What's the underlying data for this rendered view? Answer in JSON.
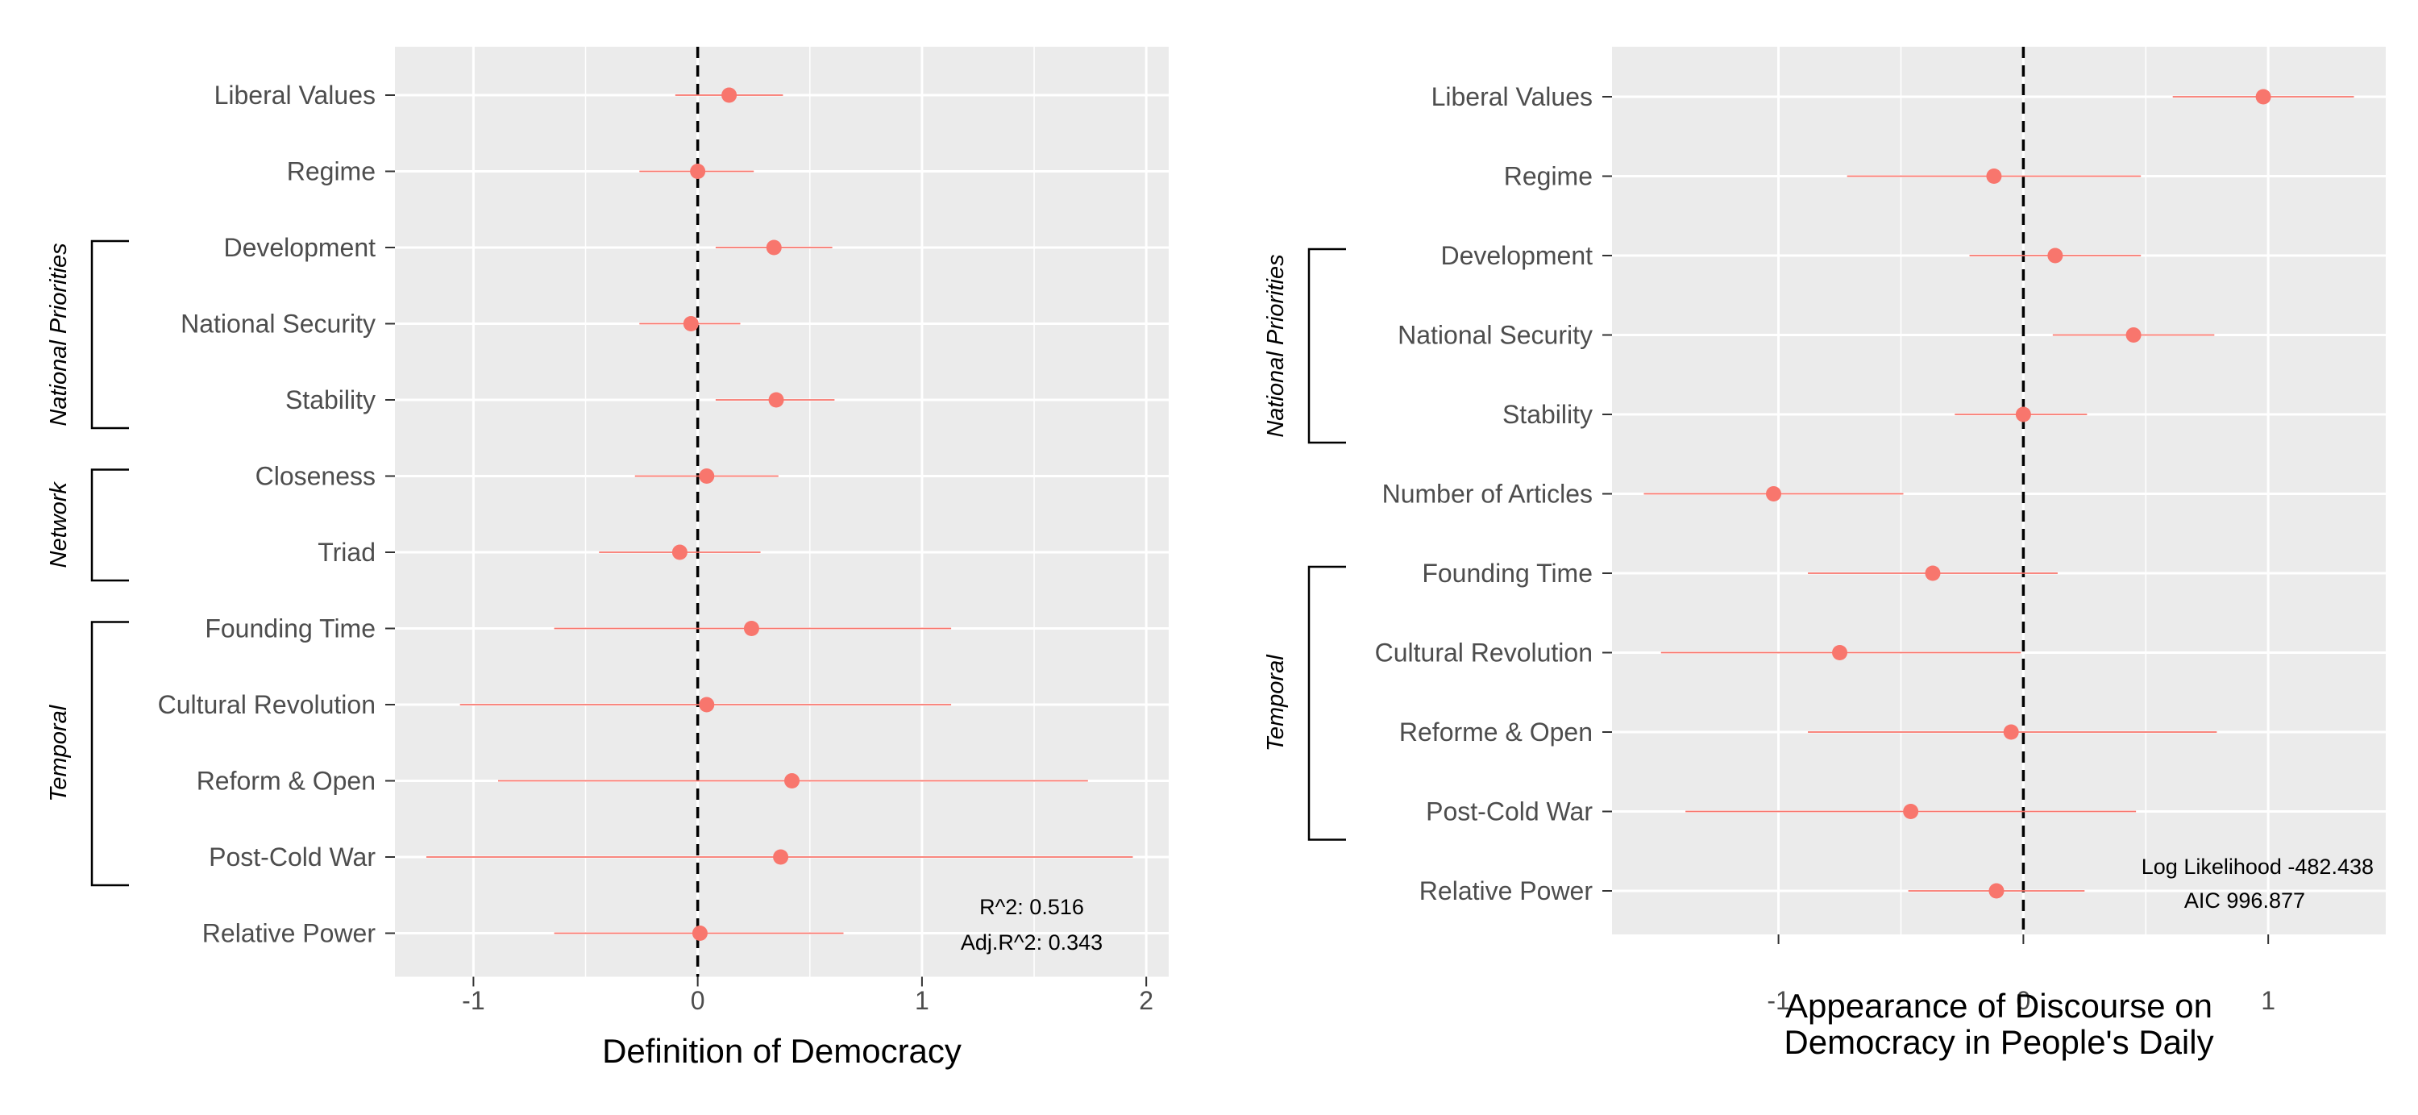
{
  "chart_data": [
    {
      "type": "scatter",
      "subtype": "coefficient-plot",
      "xlabel": "Definition of Democracy",
      "xlim": [
        -1.35,
        2.1
      ],
      "xticks": [
        -1,
        0,
        1,
        2
      ],
      "xtick_labels": [
        "-1",
        "0",
        "1",
        "2"
      ],
      "reference_line": {
        "x": 0,
        "style": "dashed"
      },
      "grid": true,
      "point_color": "#f8766d",
      "panel_background": "#ebebeb",
      "items": [
        {
          "label": "Liberal Values",
          "estimate": 0.14,
          "low": -0.1,
          "high": 0.38
        },
        {
          "label": "Regime",
          "estimate": 0.0,
          "low": -0.26,
          "high": 0.25
        },
        {
          "label": "Development",
          "estimate": 0.34,
          "low": 0.08,
          "high": 0.6
        },
        {
          "label": "National Security",
          "estimate": -0.03,
          "low": -0.26,
          "high": 0.19
        },
        {
          "label": "Stability",
          "estimate": 0.35,
          "low": 0.08,
          "high": 0.61
        },
        {
          "label": "Closeness",
          "estimate": 0.04,
          "low": -0.28,
          "high": 0.36
        },
        {
          "label": "Triad",
          "estimate": -0.08,
          "low": -0.44,
          "high": 0.28
        },
        {
          "label": "Founding Time",
          "estimate": 0.24,
          "low": -0.64,
          "high": 1.13
        },
        {
          "label": "Cultural Revolution",
          "estimate": 0.04,
          "low": -1.06,
          "high": 1.13
        },
        {
          "label": "Reform & Open",
          "estimate": 0.42,
          "low": -0.89,
          "high": 1.74
        },
        {
          "label": "Post-Cold War",
          "estimate": 0.37,
          "low": -1.21,
          "high": 1.94
        },
        {
          "label": "Relative Power",
          "estimate": 0.01,
          "low": -0.64,
          "high": 0.65
        }
      ],
      "groups": [
        {
          "label": "National Priorities",
          "start": "Development",
          "end": "Stability"
        },
        {
          "label": "Network",
          "start": "Closeness",
          "end": "Triad"
        },
        {
          "label": "Temporal",
          "start": "Founding Time",
          "end": "Post-Cold War"
        }
      ],
      "annotations": [
        "R^2: 0.516",
        "Adj.R^2: 0.343"
      ]
    },
    {
      "type": "scatter",
      "subtype": "coefficient-plot",
      "xlabel": "Appearance of Discourse on\nDemocracy in People's Daily",
      "xlabel_lines": [
        "Appearance of Discourse on",
        "Democracy in People's Daily"
      ],
      "xlim": [
        -1.68,
        1.48
      ],
      "xticks": [
        -1,
        0,
        1
      ],
      "xtick_labels": [
        "-1",
        "0",
        "1"
      ],
      "reference_line": {
        "x": 0,
        "style": "dashed"
      },
      "grid": true,
      "point_color": "#f8766d",
      "panel_background": "#ebebeb",
      "items": [
        {
          "label": "Liberal Values",
          "estimate": 0.98,
          "low": 0.61,
          "high": 1.35
        },
        {
          "label": "Regime",
          "estimate": -0.12,
          "low": -0.72,
          "high": 0.48
        },
        {
          "label": "Development",
          "estimate": 0.13,
          "low": -0.22,
          "high": 0.48
        },
        {
          "label": "National Security",
          "estimate": 0.45,
          "low": 0.12,
          "high": 0.78
        },
        {
          "label": "Stability",
          "estimate": 0.0,
          "low": -0.28,
          "high": 0.26
        },
        {
          "label": "Number of Articles",
          "estimate": -1.02,
          "low": -1.55,
          "high": -0.49
        },
        {
          "label": "Founding Time",
          "estimate": -0.37,
          "low": -0.88,
          "high": 0.14
        },
        {
          "label": "Cultural Revolution",
          "estimate": -0.75,
          "low": -1.48,
          "high": -0.01
        },
        {
          "label": "Reforme & Open",
          "estimate": -0.05,
          "low": -0.88,
          "high": 0.79
        },
        {
          "label": "Post-Cold War",
          "estimate": -0.46,
          "low": -1.38,
          "high": 0.46
        },
        {
          "label": "Relative Power",
          "estimate": -0.11,
          "low": -0.47,
          "high": 0.25
        }
      ],
      "groups": [
        {
          "label": "National Priorities",
          "start": "Development",
          "end": "Stability"
        },
        {
          "label": "Temporal",
          "start": "Founding Time",
          "end": "Post-Cold War"
        }
      ],
      "annotations": [
        "Log Likelihood -482.438",
        "AIC 996.877"
      ]
    }
  ]
}
